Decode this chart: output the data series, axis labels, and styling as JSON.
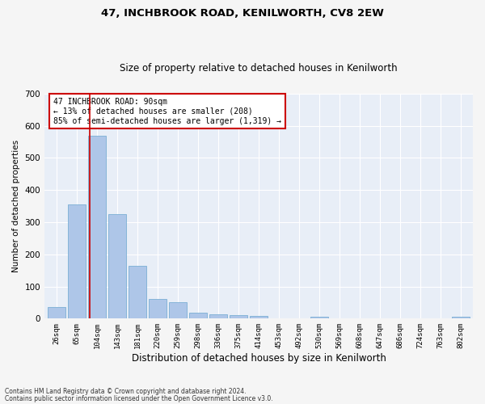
{
  "title1": "47, INCHBROOK ROAD, KENILWORTH, CV8 2EW",
  "title2": "Size of property relative to detached houses in Kenilworth",
  "xlabel": "Distribution of detached houses by size in Kenilworth",
  "ylabel": "Number of detached properties",
  "bar_labels": [
    "26sqm",
    "65sqm",
    "104sqm",
    "143sqm",
    "181sqm",
    "220sqm",
    "259sqm",
    "298sqm",
    "336sqm",
    "375sqm",
    "414sqm",
    "453sqm",
    "492sqm",
    "530sqm",
    "569sqm",
    "608sqm",
    "647sqm",
    "686sqm",
    "724sqm",
    "763sqm",
    "802sqm"
  ],
  "bar_values": [
    35,
    355,
    570,
    325,
    165,
    60,
    50,
    18,
    14,
    10,
    8,
    0,
    0,
    5,
    0,
    0,
    0,
    0,
    0,
    0,
    5
  ],
  "bar_color": "#aec6e8",
  "bar_edge_color": "#7aafd4",
  "bg_color": "#e8eef7",
  "grid_color": "#ffffff",
  "vline_color": "#cc0000",
  "annotation_text": "47 INCHBROOK ROAD: 90sqm\n← 13% of detached houses are smaller (208)\n85% of semi-detached houses are larger (1,319) →",
  "annotation_box_color": "#ffffff",
  "annotation_box_edge": "#cc0000",
  "ylim": [
    0,
    700
  ],
  "yticks": [
    0,
    100,
    200,
    300,
    400,
    500,
    600,
    700
  ],
  "footnote1": "Contains HM Land Registry data © Crown copyright and database right 2024.",
  "footnote2": "Contains public sector information licensed under the Open Government Licence v3.0."
}
